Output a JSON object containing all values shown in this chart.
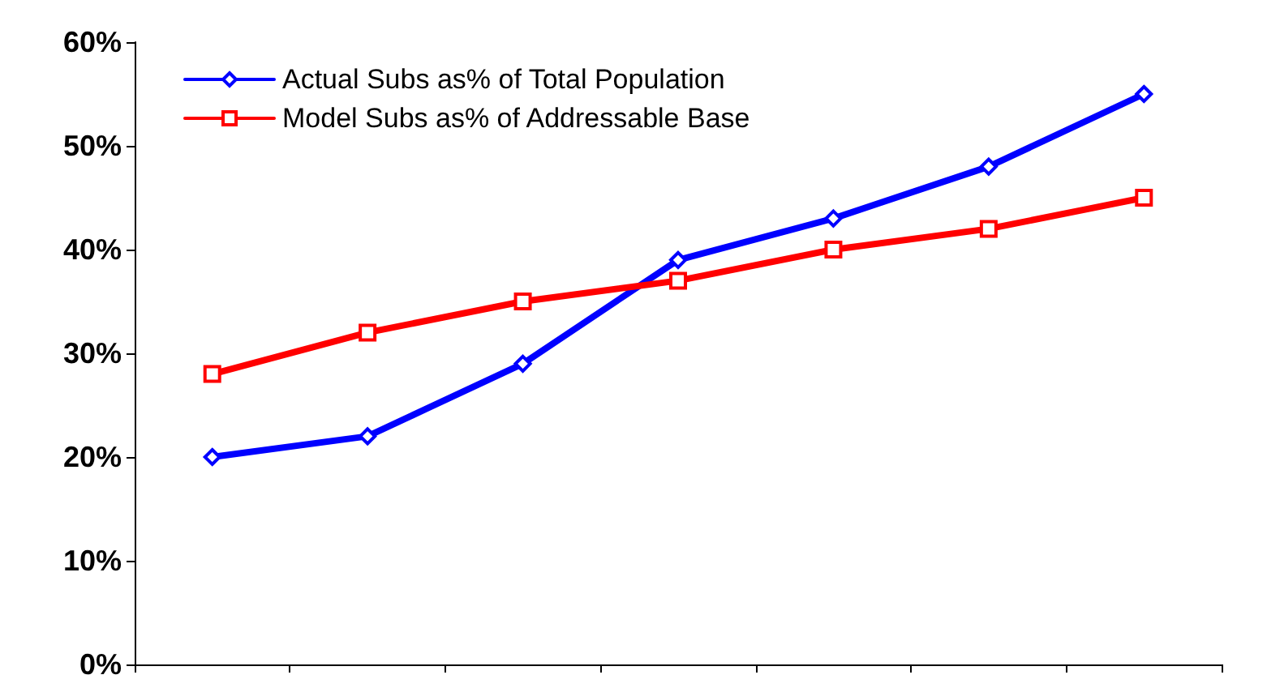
{
  "chart_data": {
    "type": "line",
    "categories": [
      null,
      null,
      null,
      null,
      null,
      null,
      null
    ],
    "series": [
      {
        "name": "Actual Subs as% of Total Population",
        "color": "#0000ff",
        "marker": "diamond",
        "values": [
          20,
          22,
          29,
          39,
          43,
          48,
          55
        ]
      },
      {
        "name": "Model Subs as% of Addressable Base",
        "color": "#ff0000",
        "marker": "square",
        "values": [
          28,
          32,
          35,
          37,
          40,
          42,
          45
        ]
      }
    ],
    "ylim": [
      0,
      60
    ],
    "yticks": [
      {
        "value": 0,
        "label": "0%"
      },
      {
        "value": 10,
        "label": "10%"
      },
      {
        "value": 20,
        "label": "20%"
      },
      {
        "value": 30,
        "label": "30%"
      },
      {
        "value": 40,
        "label": "40%"
      },
      {
        "value": 50,
        "label": "50%"
      },
      {
        "value": 60,
        "label": "60%"
      }
    ],
    "grid": false,
    "legend": "top left",
    "line_style": "solid"
  }
}
